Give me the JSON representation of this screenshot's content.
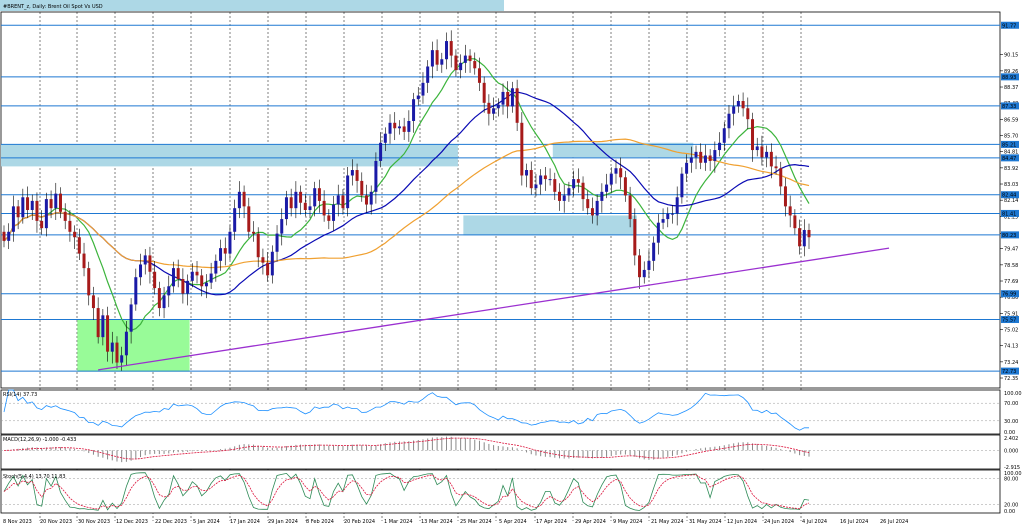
{
  "title": "#BRENT_z, Daily:  Brent Oil Spot Vs USD",
  "colors": {
    "up": "#1a1aa6",
    "down": "#a61a1a",
    "hline": "#1e78d2",
    "zone": "#add8e6",
    "zone_green": "#98fb98",
    "ma_green": "#3cb43c",
    "ma_blue": "#0a0ab4",
    "ma_orange": "#f0a030",
    "trend": "#9b30d0",
    "rsi": "#1e90ff",
    "stoch_main": "#2e8b57",
    "stoch_signal": "#dc143c",
    "tag_bg": "#1e78d2"
  },
  "chart_data": [
    {
      "type": "candlestick",
      "title": "#BRENT_z, Daily:  Brent Oil Spot Vs USD",
      "grid": true,
      "ylim": [
        71.8,
        92.5
      ],
      "y_ticks": [
        "90.15",
        "89.26",
        "88.37",
        "87.48",
        "86.59",
        "85.70",
        "84.81",
        "83.92",
        "83.03",
        "82.14",
        "81.25",
        "80.30",
        "79.47",
        "78.58",
        "77.69",
        "76.80",
        "75.91",
        "75.02",
        "74.13",
        "73.24",
        "72.35"
      ],
      "x_labels": [
        "8 Nov 2023",
        "20 Nov 2023",
        "30 Nov 2023",
        "12 Dec 2023",
        "22 Dec 2023",
        "5 Jan 2024",
        "17 Jan 2024",
        "29 Jan 2024",
        "8 Feb 2024",
        "20 Feb 2024",
        "1 Mar 2024",
        "13 Mar 2024",
        "25 Mar 2024",
        "5 Apr 2024",
        "17 Apr 2024",
        "29 Apr 2024",
        "9 May 2024",
        "21 May 2024",
        "31 May 2024",
        "12 Jun 2024",
        "24 Jun 2024",
        "4 Jul 2024",
        "16 Jul 2024",
        "26 Jul 2024"
      ],
      "level_tags": [
        "91.77",
        "88.93",
        "87.33",
        "85.21",
        "84.47",
        "82.44",
        "81.41",
        "80.23",
        "76.99",
        "75.57",
        "72.73"
      ],
      "levels": [
        91.77,
        88.93,
        87.33,
        85.21,
        84.47,
        82.44,
        81.41,
        80.23,
        76.99,
        75.57,
        72.73
      ],
      "zones": [
        {
          "from": 0,
          "to": 96,
          "low": 84.0,
          "high": 85.2,
          "color": "blue"
        },
        {
          "from": 98,
          "to": 134,
          "low": 80.2,
          "high": 81.3,
          "color": "blue"
        },
        {
          "from": 117,
          "to": 146,
          "low": 84.5,
          "high": 85.3,
          "color": "blue"
        },
        {
          "from": 16,
          "to": 39,
          "low": 72.7,
          "high": 75.6,
          "color": "green"
        }
      ],
      "trendline": {
        "from": [
          20,
          72.8
        ],
        "to": [
          188,
          79.5
        ]
      },
      "closes": [
        79.9,
        80.4,
        81.8,
        81.2,
        82.3,
        81.6,
        82.1,
        81.0,
        80.6,
        82.2,
        81.7,
        82.5,
        81.5,
        81.0,
        80.4,
        80.1,
        79.2,
        78.4,
        76.9,
        76.2,
        74.6,
        75.8,
        73.8,
        74.3,
        73.2,
        73.6,
        74.9,
        76.4,
        77.9,
        78.6,
        79.1,
        78.2,
        77.3,
        76.2,
        76.9,
        77.4,
        78.4,
        77.8,
        77.0,
        77.7,
        78.2,
        78.0,
        77.4,
        77.6,
        78.1,
        78.8,
        79.5,
        79.2,
        80.4,
        81.7,
        82.6,
        81.8,
        80.4,
        80.3,
        79.0,
        78.7,
        78.0,
        79.3,
        80.3,
        81.1,
        82.3,
        81.7,
        82.6,
        82.0,
        81.6,
        81.8,
        82.8,
        82.1,
        81.3,
        81.0,
        81.9,
        82.4,
        81.7,
        83.5,
        83.8,
        83.2,
        82.4,
        81.9,
        82.6,
        84.3,
        85.3,
        85.8,
        86.4,
        86.1,
        86.2,
        85.9,
        86.5,
        87.7,
        87.9,
        88.6,
        89.5,
        90.4,
        89.6,
        89.9,
        90.9,
        90.1,
        89.3,
        89.7,
        90.1,
        89.8,
        89.4,
        88.6,
        87.5,
        86.9,
        87.2,
        87.4,
        88.1,
        87.3,
        88.3,
        86.4,
        83.5,
        83.8,
        82.8,
        83.0,
        83.5,
        83.3,
        83.3,
        82.6,
        82.1,
        82.4,
        82.8,
        83.3,
        83.1,
        82.2,
        81.7,
        81.3,
        82.1,
        82.6,
        83.0,
        83.6,
        83.9,
        83.4,
        82.4,
        81.1,
        79.1,
        77.9,
        78.3,
        78.8,
        79.8,
        80.9,
        81.1,
        81.4,
        81.4,
        82.3,
        83.6,
        84.2,
        84.5,
        84.8,
        84.2,
        84.6,
        84.3,
        84.9,
        85.3,
        86.1,
        86.9,
        87.3,
        87.6,
        87.2,
        86.6,
        84.9,
        85.1,
        84.5,
        84.8,
        84.0,
        83.9,
        82.9,
        81.8,
        81.3,
        80.6,
        79.6,
        80.5,
        80.1
      ]
    },
    {
      "type": "line",
      "title": "RSI(14) 37.73",
      "ylim": [
        0,
        100
      ],
      "y_ticks": [
        "100.00",
        "70.00",
        "30.00",
        "0.00"
      ],
      "series": [
        {
          "name": "RSI(14)",
          "last": 37.73
        }
      ]
    },
    {
      "type": "bar",
      "title": "MACD(12,26,9) -1.000 -0.433",
      "ylim": [
        -2.915,
        2.402
      ],
      "y_ticks": [
        "2.402",
        "0.000",
        "-2.915"
      ],
      "series": [
        {
          "name": "MACD",
          "last": -1.0
        },
        {
          "name": "Signal",
          "last": -0.433
        }
      ]
    },
    {
      "type": "line",
      "title": "Stoch(5,4,4) 13.70 11.83",
      "ylim": [
        0,
        100
      ],
      "y_ticks": [
        "100.00",
        "80.00",
        "20.00",
        "0.00"
      ],
      "series": [
        {
          "name": "%K",
          "last": 13.7
        },
        {
          "name": "%D",
          "last": 11.83
        }
      ]
    }
  ]
}
